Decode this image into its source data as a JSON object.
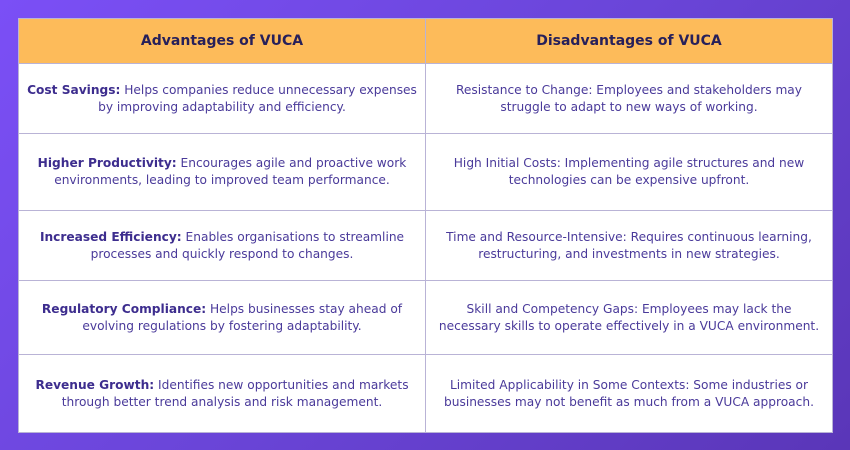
{
  "table": {
    "headers": [
      "Advantages of VUCA",
      "Disadvantages of VUCA"
    ],
    "rows": [
      {
        "adv_title": "Cost Savings:",
        "adv_text": " Helps companies reduce unnecessary expenses by improving adaptability and efficiency.",
        "dis": "Resistance to Change: Employees and stakeholders may struggle to adapt to new ways of working."
      },
      {
        "adv_title": "Higher Productivity:",
        "adv_text": " Encourages agile and proactive work environments, leading to improved team performance.",
        "dis": "High Initial Costs: Implementing agile structures and new technologies can be expensive upfront."
      },
      {
        "adv_title": "Increased Efficiency:",
        "adv_text": " Enables organisations to streamline processes and quickly respond to changes.",
        "dis": "Time and Resource-Intensive: Requires continuous learning, restructuring, and investments in new strategies."
      },
      {
        "adv_title": "Regulatory Compliance:",
        "adv_text": " Helps businesses stay ahead of evolving regulations by fostering adaptability.",
        "dis": "Skill and Competency Gaps: Employees may lack the necessary skills to operate effectively in a VUCA environment."
      },
      {
        "adv_title": "Revenue Growth:",
        "adv_text": " Identifies new opportunities and markets through better trend analysis and risk management.",
        "dis": "Limited Applicability in Some Contexts: Some industries or businesses may not benefit as much from a VUCA approach."
      }
    ]
  },
  "colors": {
    "header_bg": "#fdbb5a",
    "text": "#4a3a9a",
    "background": "#6a45d8"
  }
}
